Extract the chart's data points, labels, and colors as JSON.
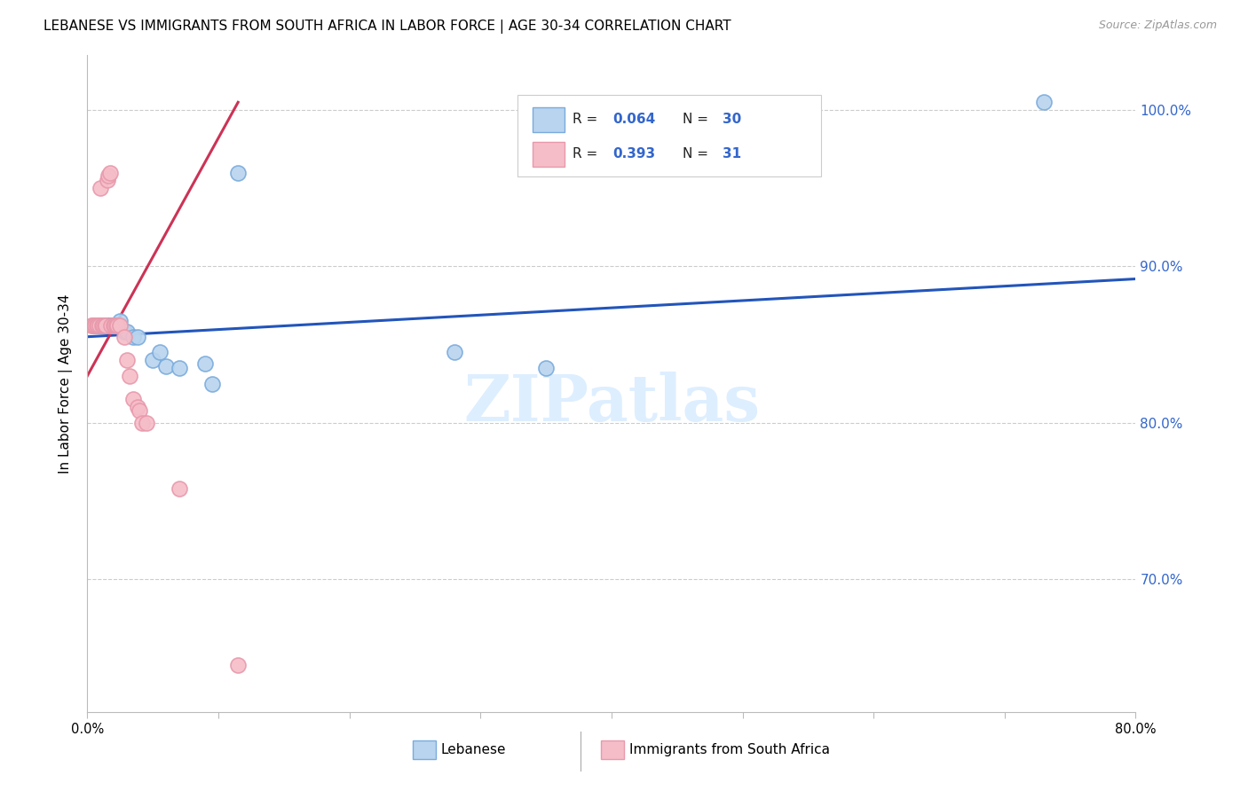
{
  "title": "LEBANESE VS IMMIGRANTS FROM SOUTH AFRICA IN LABOR FORCE | AGE 30-34 CORRELATION CHART",
  "source": "Source: ZipAtlas.com",
  "ylabel": "In Labor Force | Age 30-34",
  "xlim": [
    0.0,
    0.8
  ],
  "ylim": [
    0.615,
    1.035
  ],
  "watermark": "ZIPatlas",
  "blue_scatter_x": [
    0.005,
    0.007,
    0.008,
    0.009,
    0.01,
    0.011,
    0.012,
    0.013,
    0.014,
    0.015,
    0.016,
    0.017,
    0.018,
    0.02,
    0.022,
    0.025,
    0.028,
    0.03,
    0.035,
    0.038,
    0.05,
    0.055,
    0.06,
    0.07,
    0.09,
    0.095,
    0.115,
    0.28,
    0.35,
    0.73
  ],
  "blue_scatter_y": [
    0.862,
    0.862,
    0.862,
    0.862,
    0.862,
    0.862,
    0.862,
    0.862,
    0.862,
    0.862,
    0.862,
    0.862,
    0.862,
    0.862,
    0.862,
    0.865,
    0.858,
    0.858,
    0.855,
    0.855,
    0.84,
    0.845,
    0.836,
    0.835,
    0.838,
    0.825,
    0.96,
    0.845,
    0.835,
    1.005
  ],
  "pink_scatter_x": [
    0.003,
    0.004,
    0.005,
    0.006,
    0.007,
    0.008,
    0.009,
    0.01,
    0.011,
    0.012,
    0.013,
    0.014,
    0.015,
    0.016,
    0.017,
    0.018,
    0.02,
    0.021,
    0.022,
    0.023,
    0.025,
    0.028,
    0.03,
    0.032,
    0.035,
    0.038,
    0.04,
    0.042,
    0.045,
    0.07,
    0.115
  ],
  "pink_scatter_y": [
    0.862,
    0.862,
    0.862,
    0.862,
    0.862,
    0.862,
    0.862,
    0.95,
    0.862,
    0.862,
    0.862,
    0.862,
    0.955,
    0.958,
    0.96,
    0.862,
    0.862,
    0.862,
    0.862,
    0.862,
    0.862,
    0.855,
    0.84,
    0.83,
    0.815,
    0.81,
    0.808,
    0.8,
    0.8,
    0.758,
    0.645
  ],
  "blue_line_x": [
    0.0,
    0.8
  ],
  "blue_line_y": [
    0.855,
    0.892
  ],
  "pink_line_x": [
    0.0,
    0.115
  ],
  "pink_line_y": [
    0.83,
    1.005
  ],
  "blue_line_color": "#2255bb",
  "pink_line_color": "#cc3355",
  "scatter_blue_color": "#b8d4ee",
  "scatter_pink_color": "#f5bdc8",
  "scatter_blue_edge": "#7aabdd",
  "scatter_pink_edge": "#e899ab",
  "right_axis_color": "#3366cc",
  "grid_color": "#cccccc",
  "title_fontsize": 11,
  "source_fontsize": 9,
  "watermark_color": "#ddeeff",
  "watermark_fontsize": 52,
  "yticks": [
    0.7,
    0.8,
    0.9,
    1.0
  ],
  "ytick_labels_right": [
    "70.0%",
    "80.0%",
    "90.0%",
    "100.0%"
  ]
}
